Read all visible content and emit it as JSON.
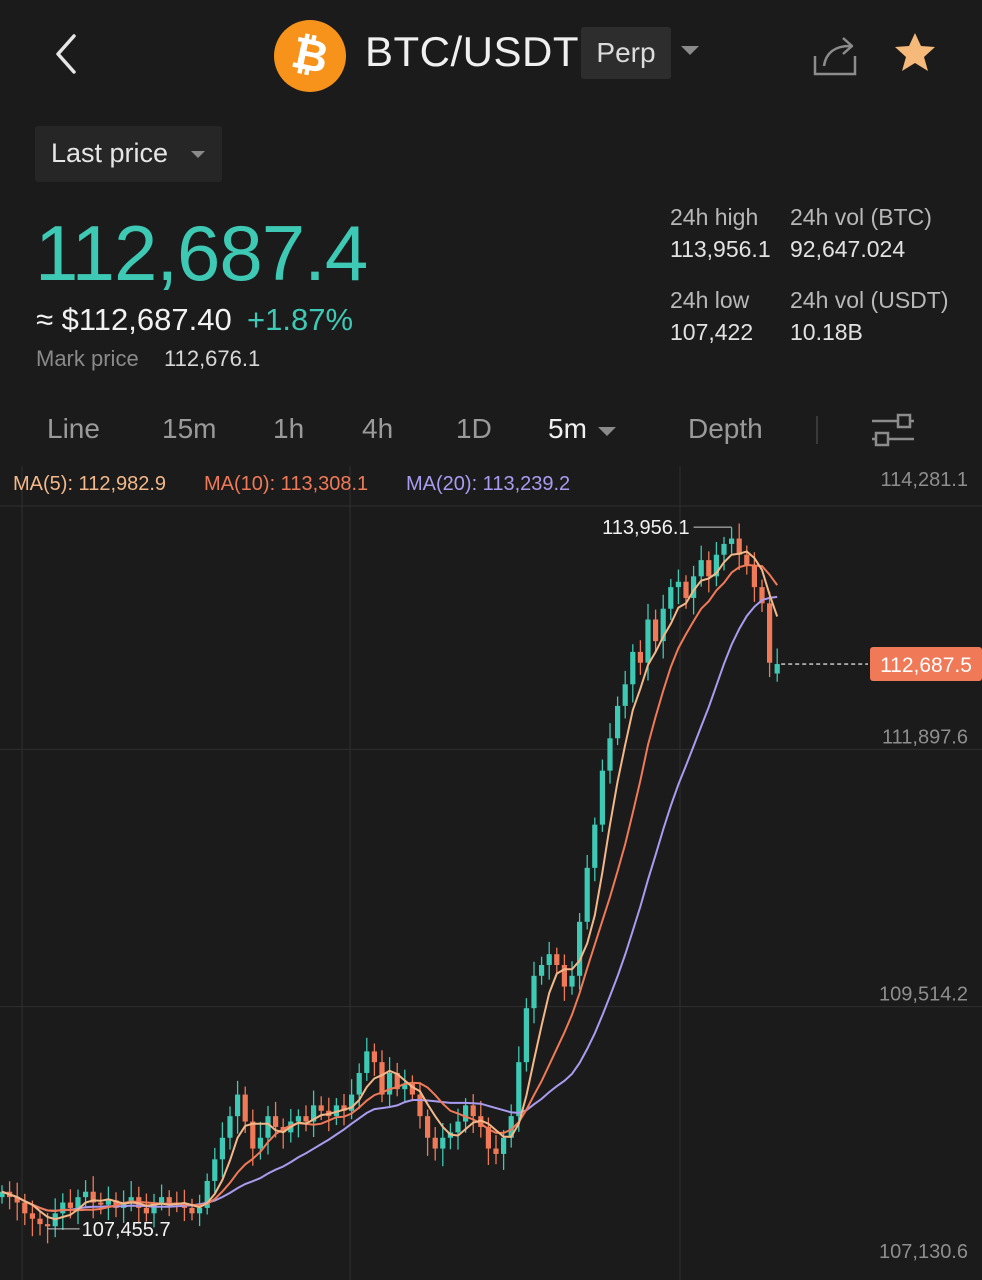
{
  "header": {
    "pair": "BTC/USDT",
    "contract_type": "Perp",
    "logo_glyph": "₿",
    "icons": [
      "back-arrow-icon",
      "share-icon",
      "star-icon",
      "chevron-down-icon"
    ],
    "star_color": "#f5b97a",
    "logo_color": "#f7931a"
  },
  "price_selector": {
    "label": "Last price"
  },
  "price": {
    "last": "112,687.4",
    "usd_approx": "≈ $112,687.40",
    "change_pct": "+1.87%",
    "mark_label": "Mark price",
    "mark_value": "112,676.1",
    "up_color": "#3ec9b4"
  },
  "stats": {
    "high_label": "24h high",
    "high_value": "113,956.1",
    "vol_btc_label": "24h vol (BTC)",
    "vol_btc_value": "92,647.024",
    "low_label": "24h low",
    "low_value": "107,422",
    "vol_usdt_label": "24h vol (USDT)",
    "vol_usdt_value": "10.18B"
  },
  "tabs": [
    {
      "label": "Line"
    },
    {
      "label": "15m"
    },
    {
      "label": "1h"
    },
    {
      "label": "4h"
    },
    {
      "label": "1D"
    },
    {
      "label": "5m",
      "selected": true
    },
    {
      "label": "Depth"
    }
  ],
  "ma_legend": {
    "ma5": "MA(5): 112,982.9",
    "ma10": "MA(10): 113,308.1",
    "ma20": "MA(20): 113,239.2"
  },
  "chart_data": {
    "type": "candlestick",
    "interval": "5m",
    "y_ticks": [
      "114,281.1",
      "111,897.6",
      "109,514.2",
      "107,130.6"
    ],
    "y_tick_values": [
      114281.1,
      111897.6,
      109514.2,
      107130.6
    ],
    "ylim": [
      107130.6,
      114281.1
    ],
    "max_marker": "113,956.1",
    "min_marker": "107,455.7",
    "current_price_tag": "112,687.5",
    "current_price_value": 112687.5,
    "up_color": "#3ec9b4",
    "down_color": "#f07a58",
    "ma_colors": {
      "ma5": "#f2b88a",
      "ma10": "#f07a58",
      "ma20": "#a99cf0"
    },
    "closes": [
      107800,
      107750,
      107700,
      107600,
      107550,
      107500,
      107480,
      107600,
      107700,
      107650,
      107750,
      107800,
      107700,
      107680,
      107720,
      107650,
      107700,
      107750,
      107650,
      107600,
      107700,
      107750,
      107700,
      107680,
      107650,
      107600,
      107650,
      107900,
      108100,
      108300,
      108500,
      108700,
      108450,
      108200,
      108300,
      108500,
      108400,
      108350,
      108450,
      108500,
      108450,
      108600,
      108550,
      108500,
      108600,
      108550,
      108700,
      108900,
      109100,
      109000,
      108700,
      108900,
      108750,
      108800,
      108700,
      108500,
      108300,
      108200,
      108300,
      108350,
      108450,
      108600,
      108500,
      108400,
      108200,
      108150,
      108300,
      108500,
      109000,
      109500,
      109800,
      109900,
      110000,
      109900,
      109700,
      109800,
      110300,
      110800,
      111200,
      111700,
      112000,
      112300,
      112500,
      112800,
      112700,
      113100,
      112900,
      113200,
      113400,
      113450,
      113300,
      113500,
      113650,
      113500,
      113700,
      113800,
      113850,
      113700,
      113600,
      113400,
      113250,
      112700,
      112687.5
    ],
    "opens": [
      107750,
      107800,
      107750,
      107700,
      107600,
      107550,
      107500,
      107480,
      107600,
      107700,
      107650,
      107750,
      107800,
      107700,
      107680,
      107720,
      107650,
      107700,
      107750,
      107650,
      107600,
      107700,
      107750,
      107700,
      107680,
      107650,
      107600,
      107650,
      107900,
      108100,
      108300,
      108500,
      108700,
      108450,
      108200,
      108300,
      108500,
      108400,
      108350,
      108450,
      108500,
      108450,
      108600,
      108550,
      108500,
      108600,
      108550,
      108700,
      108900,
      109100,
      109000,
      108700,
      108900,
      108750,
      108800,
      108700,
      108500,
      108300,
      108200,
      108300,
      108350,
      108450,
      108600,
      108500,
      108400,
      108200,
      108150,
      108300,
      108500,
      109000,
      109500,
      109800,
      109900,
      110000,
      109900,
      109700,
      109800,
      110300,
      110800,
      111200,
      111700,
      112000,
      112300,
      112500,
      112800,
      112700,
      113100,
      112900,
      113200,
      113400,
      113450,
      113300,
      113500,
      113650,
      113500,
      113700,
      113800,
      113850,
      113700,
      113600,
      113400,
      113250,
      112600
    ]
  }
}
